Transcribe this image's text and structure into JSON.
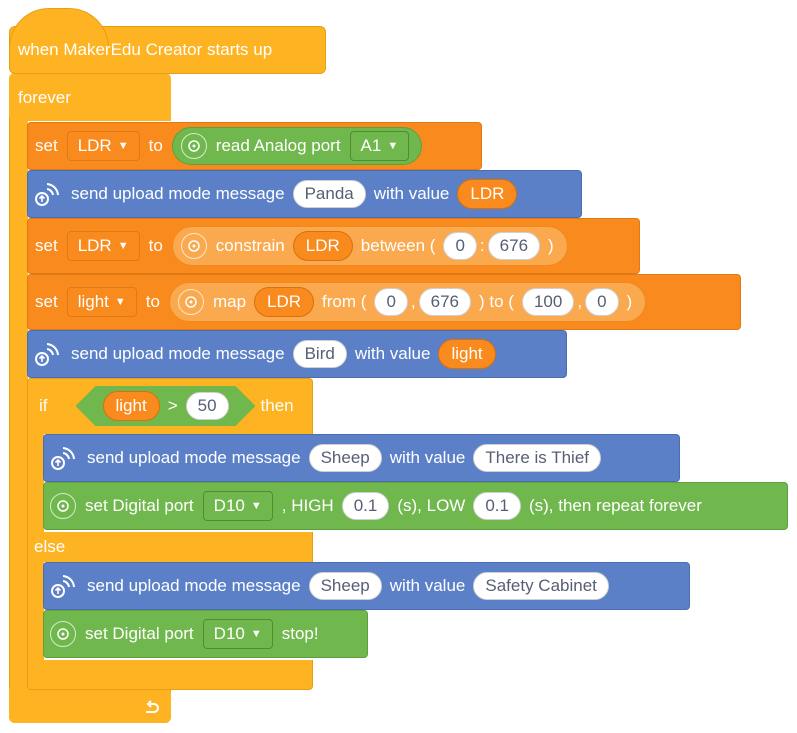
{
  "hat": {
    "label": "when MakerEdu Creator starts up"
  },
  "forever": {
    "label": "forever"
  },
  "colors": {
    "control": "#fdb322",
    "variables": "#f98a1d",
    "upload": "#5b80c8",
    "io": "#70b84d"
  },
  "b1": {
    "set": "set",
    "var": "LDR",
    "to": "to",
    "read": "read Analog port",
    "port": "A1"
  },
  "b2": {
    "text": "send upload mode message",
    "msg": "Panda",
    "with": "with value",
    "val": "LDR"
  },
  "b3": {
    "set": "set",
    "var": "LDR",
    "to": "to",
    "constrain": "constrain",
    "arg": "LDR",
    "between": "between (",
    "lo": "0",
    "colon": ":",
    "hi": "676",
    "close": ")"
  },
  "b4": {
    "set": "set",
    "var": "light",
    "to": "to",
    "map": "map",
    "arg": "LDR",
    "from": "from (",
    "f1": "0",
    "comma1": ",",
    "f2": "676",
    "to2": ") to (",
    "t1": "100",
    "comma2": ",",
    "t2": "0",
    "close": ")"
  },
  "b5": {
    "text": "send upload mode message",
    "msg": "Bird",
    "with": "with value",
    "val": "light"
  },
  "if": {
    "if": "if",
    "var": "light",
    "op": ">",
    "num": "50",
    "then": "then",
    "else": "else"
  },
  "b6": {
    "text": "send upload mode message",
    "msg": "Sheep",
    "with": "with value",
    "val": "There is Thief"
  },
  "b7": {
    "text": "set Digital port",
    "port": "D10",
    "high": ", HIGH",
    "hv": "0.1",
    "low": "(s), LOW",
    "lv": "0.1",
    "rest": "(s), then repeat forever"
  },
  "b8": {
    "text": "send upload mode message",
    "msg": "Sheep",
    "with": "with value",
    "val": "Safety Cabinet"
  },
  "b9": {
    "text": "set Digital port",
    "port": "D10",
    "stop": "stop!"
  }
}
